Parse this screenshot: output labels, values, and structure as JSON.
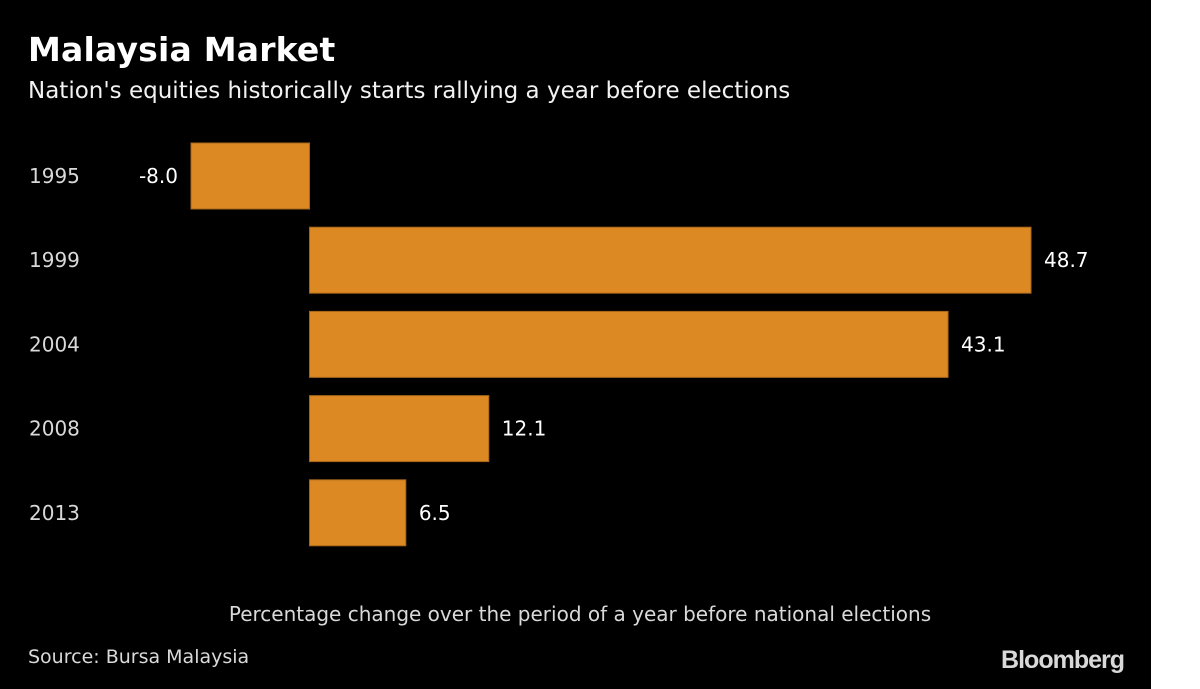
{
  "chart_data": {
    "type": "bar",
    "orientation": "horizontal",
    "title": "Malaysia Market",
    "subtitle": "Nation's equities historically starts rallying a year before elections",
    "categories": [
      "1995",
      "1999",
      "2004",
      "2008",
      "2013"
    ],
    "values": [
      -8.0,
      48.7,
      43.1,
      12.1,
      6.5
    ],
    "value_labels": [
      "-8.0",
      "48.7",
      "43.1",
      "12.1",
      "6.5"
    ],
    "xlabel": "Percentage change over the period of a year before national elections",
    "ylabel": "",
    "xlim": [
      -8.0,
      48.7
    ],
    "grid": false,
    "legend": "none",
    "bar_color": "#dc8924",
    "source": "Source: Bursa Malaysia",
    "brand": "Bloomberg"
  }
}
